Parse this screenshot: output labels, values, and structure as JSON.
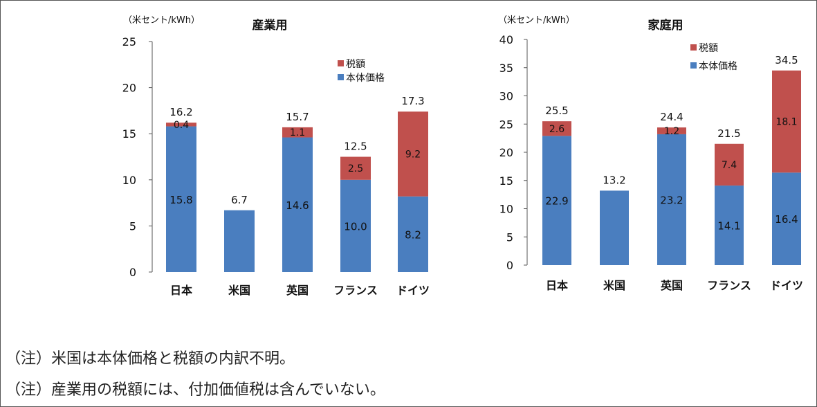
{
  "colors": {
    "base": "#4a7ebf",
    "tax": "#c0504d",
    "axis": "#555555"
  },
  "chart_data": [
    {
      "type": "bar",
      "stacked": true,
      "title": "産業用",
      "unit_label": "（米セント/kWh）",
      "categories": [
        "日本",
        "米国",
        "英国",
        "フランス",
        "ドイツ"
      ],
      "ylim": [
        0,
        25
      ],
      "yticks": [
        0,
        5,
        10,
        15,
        20,
        25
      ],
      "legend": {
        "position": "top-right",
        "items": [
          "税額",
          "本体価格"
        ]
      },
      "series": [
        {
          "name": "本体価格",
          "values": [
            15.8,
            6.7,
            14.6,
            10.0,
            8.2
          ],
          "labels": [
            "15.8",
            "",
            "14.6",
            "10.0",
            "8.2"
          ]
        },
        {
          "name": "税額",
          "values": [
            0.4,
            0,
            1.1,
            2.5,
            9.2
          ],
          "labels": [
            "0.4",
            "",
            "1.1",
            "2.5",
            "9.2"
          ]
        }
      ],
      "totals": [
        "16.2",
        "6.7",
        "15.7",
        "12.5",
        "17.3"
      ]
    },
    {
      "type": "bar",
      "stacked": true,
      "title": "家庭用",
      "unit_label": "（米セント/kWh）",
      "categories": [
        "日本",
        "米国",
        "英国",
        "フランス",
        "ドイツ"
      ],
      "ylim": [
        0,
        40
      ],
      "yticks": [
        0,
        5,
        10,
        15,
        20,
        25,
        30,
        35,
        40
      ],
      "legend": {
        "position": "top-right",
        "items": [
          "税額",
          "本体価格"
        ]
      },
      "series": [
        {
          "name": "本体価格",
          "values": [
            22.9,
            13.2,
            23.2,
            14.1,
            16.4
          ],
          "labels": [
            "22.9",
            "",
            "23.2",
            "14.1",
            "16.4"
          ]
        },
        {
          "name": "税額",
          "values": [
            2.6,
            0,
            1.2,
            7.4,
            18.1
          ],
          "labels": [
            "2.6",
            "",
            "1.2",
            "7.4",
            "18.1"
          ]
        }
      ],
      "totals": [
        "25.5",
        "13.2",
        "24.4",
        "21.5",
        "34.5"
      ]
    }
  ],
  "notes": [
    "（注）米国は本体価格と税額の内訳不明。",
    "（注）産業用の税額には、付加価値税は含んでいない。"
  ]
}
